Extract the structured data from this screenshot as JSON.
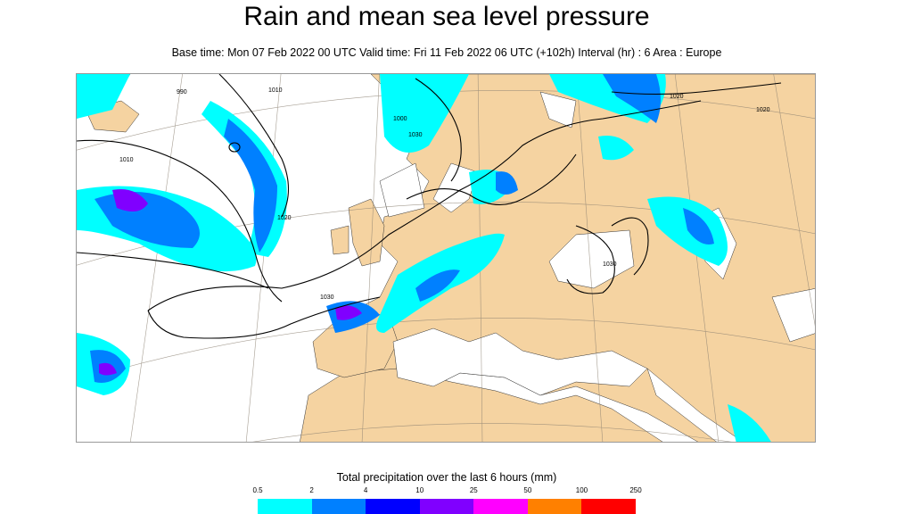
{
  "header": {
    "title": "Rain and mean sea level pressure",
    "subtitle": "Base time: Mon 07 Feb 2022 00 UTC Valid time: Fri 11 Feb 2022 06 UTC (+102h) Interval (hr) : 6 Area : Europe"
  },
  "map": {
    "colors": {
      "land": "#f5d3a1",
      "sea": "#ffffff"
    },
    "isobar_labels": [
      "1010",
      "1020",
      "1030",
      "990",
      "1000",
      "1010",
      "1020",
      "1020",
      "1030",
      "1030"
    ]
  },
  "legend": {
    "title": "Total precipitation over the last 6 hours (mm)",
    "ticks": [
      "0.5",
      "2",
      "4",
      "10",
      "25",
      "50",
      "100",
      "250"
    ],
    "colors": [
      "#00ffff",
      "#0080ff",
      "#0000ff",
      "#8000ff",
      "#ff00ff",
      "#ff8000",
      "#ff0000"
    ]
  }
}
